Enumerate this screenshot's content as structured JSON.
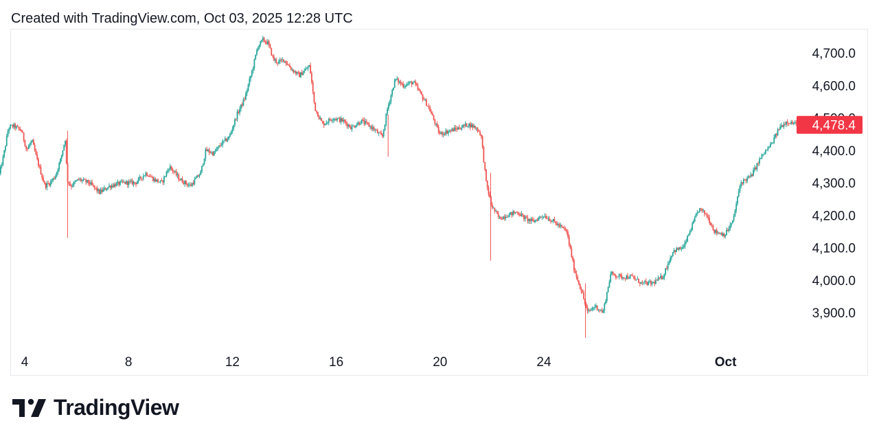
{
  "header": {
    "created_text": "Created with TradingView.com, Oct 03, 2025 12:28 UTC"
  },
  "footer": {
    "brand": "TradingView",
    "logo_icon": "tradingview-logo-icon"
  },
  "colors": {
    "up": "#26a69a",
    "down": "#ef5350",
    "badge": "#f23645",
    "text": "#131722",
    "border": "#e6e8ec"
  },
  "chart_data": {
    "type": "candlestick",
    "title": "",
    "xlabel": "",
    "ylabel": "",
    "last_price": 4478.4,
    "last_price_label": "4,478.4",
    "ylim": [
      3820,
      4770
    ],
    "y_ticks": [
      {
        "value": 4700,
        "label": "4,700.0"
      },
      {
        "value": 4600,
        "label": "4,600.0"
      },
      {
        "value": 4500,
        "label": "4,500.0"
      },
      {
        "value": 4400,
        "label": "4,400.0"
      },
      {
        "value": 4300,
        "label": "4,300.0"
      },
      {
        "value": 4200,
        "label": "4,200.0"
      },
      {
        "value": 4100,
        "label": "4,100.0"
      },
      {
        "value": 4000,
        "label": "4,000.0"
      },
      {
        "value": 3900,
        "label": "3,900.0"
      }
    ],
    "x_range": [
      "Sep 3 12:00",
      "Oct 3 12:28"
    ],
    "x_ticks": [
      {
        "day": 4,
        "label": "4",
        "bold": false
      },
      {
        "day": 8,
        "label": "8",
        "bold": false
      },
      {
        "day": 12,
        "label": "12",
        "bold": false
      },
      {
        "day": 16,
        "label": "16",
        "bold": false
      },
      {
        "day": 20,
        "label": "20",
        "bold": false
      },
      {
        "day": 24,
        "label": "24",
        "bold": false
      },
      {
        "day": 31,
        "label": "Oct",
        "bold": true
      }
    ],
    "grid": false,
    "price_path": [
      [
        3.0,
        4310
      ],
      [
        3.2,
        4380
      ],
      [
        3.4,
        4470
      ],
      [
        3.6,
        4475
      ],
      [
        3.9,
        4460
      ],
      [
        4.1,
        4400
      ],
      [
        4.3,
        4430
      ],
      [
        4.5,
        4370
      ],
      [
        4.8,
        4290
      ],
      [
        5.0,
        4300
      ],
      [
        5.2,
        4320
      ],
      [
        5.4,
        4370
      ],
      [
        5.6,
        4440
      ],
      [
        5.65,
        4310
      ],
      [
        5.8,
        4290
      ],
      [
        6.1,
        4310
      ],
      [
        6.5,
        4300
      ],
      [
        6.9,
        4270
      ],
      [
        7.3,
        4290
      ],
      [
        7.8,
        4300
      ],
      [
        8.3,
        4300
      ],
      [
        8.7,
        4330
      ],
      [
        9.0,
        4310
      ],
      [
        9.3,
        4300
      ],
      [
        9.6,
        4350
      ],
      [
        10.0,
        4310
      ],
      [
        10.4,
        4290
      ],
      [
        10.8,
        4330
      ],
      [
        11.0,
        4400
      ],
      [
        11.3,
        4390
      ],
      [
        11.6,
        4420
      ],
      [
        11.9,
        4440
      ],
      [
        12.2,
        4510
      ],
      [
        12.5,
        4560
      ],
      [
        12.8,
        4650
      ],
      [
        13.0,
        4720
      ],
      [
        13.2,
        4740
      ],
      [
        13.4,
        4730
      ],
      [
        13.6,
        4680
      ],
      [
        13.8,
        4670
      ],
      [
        14.0,
        4680
      ],
      [
        14.3,
        4650
      ],
      [
        14.6,
        4630
      ],
      [
        15.0,
        4660
      ],
      [
        15.2,
        4530
      ],
      [
        15.5,
        4480
      ],
      [
        15.9,
        4500
      ],
      [
        16.3,
        4490
      ],
      [
        16.6,
        4470
      ],
      [
        17.0,
        4490
      ],
      [
        17.4,
        4470
      ],
      [
        17.8,
        4440
      ],
      [
        18.0,
        4530
      ],
      [
        18.3,
        4620
      ],
      [
        18.6,
        4600
      ],
      [
        19.0,
        4610
      ],
      [
        19.3,
        4570
      ],
      [
        19.6,
        4530
      ],
      [
        20.0,
        4450
      ],
      [
        20.4,
        4460
      ],
      [
        20.8,
        4470
      ],
      [
        21.1,
        4480
      ],
      [
        21.4,
        4470
      ],
      [
        21.6,
        4450
      ],
      [
        21.8,
        4300
      ],
      [
        22.0,
        4230
      ],
      [
        22.3,
        4190
      ],
      [
        22.6,
        4200
      ],
      [
        23.0,
        4210
      ],
      [
        23.3,
        4190
      ],
      [
        23.6,
        4180
      ],
      [
        24.0,
        4200
      ],
      [
        24.4,
        4180
      ],
      [
        24.9,
        4150
      ],
      [
        25.2,
        4030
      ],
      [
        25.5,
        3960
      ],
      [
        25.7,
        3900
      ],
      [
        26.0,
        3920
      ],
      [
        26.3,
        3900
      ],
      [
        26.6,
        4020
      ],
      [
        27.0,
        4010
      ],
      [
        27.4,
        4010
      ],
      [
        27.8,
        3990
      ],
      [
        28.2,
        3990
      ],
      [
        28.6,
        4010
      ],
      [
        29.0,
        4090
      ],
      [
        29.4,
        4100
      ],
      [
        29.8,
        4180
      ],
      [
        30.0,
        4220
      ],
      [
        30.3,
        4200
      ],
      [
        30.6,
        4150
      ],
      [
        31.0,
        4140
      ],
      [
        31.3,
        4180
      ],
      [
        31.6,
        4300
      ],
      [
        32.0,
        4320
      ],
      [
        32.4,
        4380
      ],
      [
        32.8,
        4420
      ],
      [
        33.1,
        4470
      ],
      [
        33.4,
        4490
      ],
      [
        33.7,
        4480
      ],
      [
        33.9,
        4478.4
      ]
    ]
  }
}
